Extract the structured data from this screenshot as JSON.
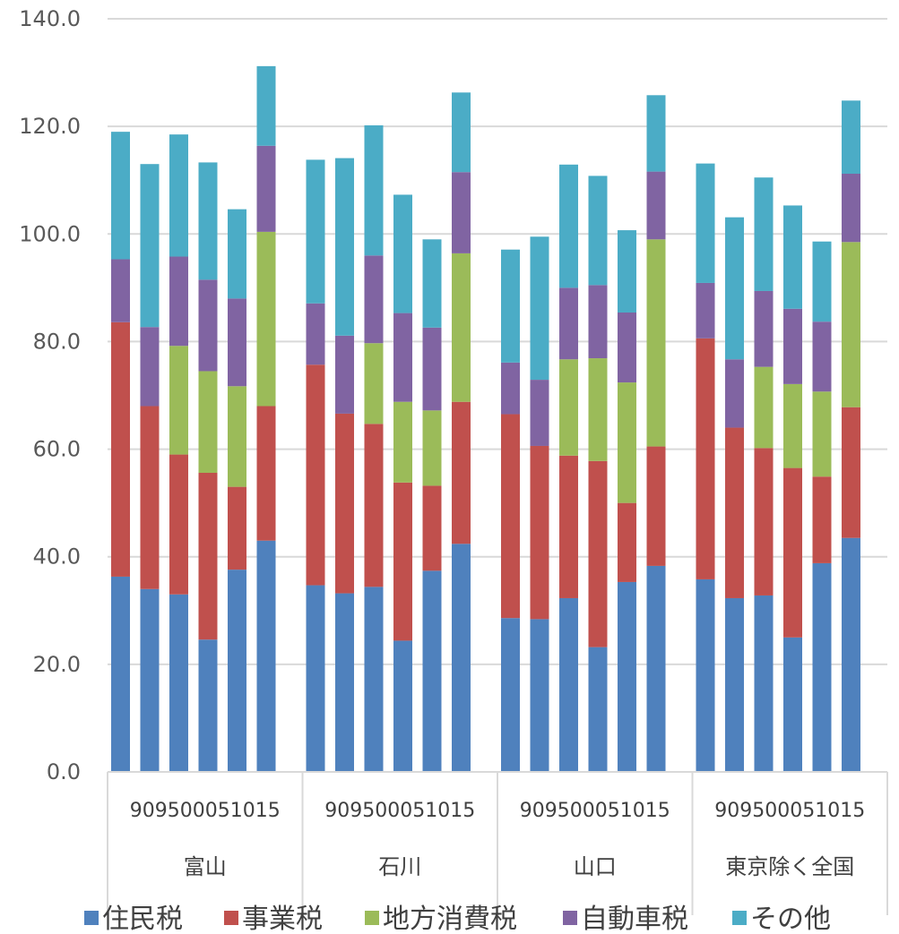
{
  "chart_data": {
    "type": "bar",
    "stacked": true,
    "title": "",
    "xlabel": "",
    "ylabel": "",
    "ylim": [
      0,
      140
    ],
    "y_ticks": [
      "0.0",
      "20.0",
      "40.0",
      "60.0",
      "80.0",
      "100.0",
      "120.0",
      "140.0"
    ],
    "grid": true,
    "legend_position": "bottom",
    "groups": [
      {
        "name": "富山",
        "tick_label": "909500051015"
      },
      {
        "name": "石川",
        "tick_label": "909500051015"
      },
      {
        "name": "山口",
        "tick_label": "909500051015"
      },
      {
        "name": "東京除く全国",
        "tick_label": "909500051015"
      }
    ],
    "series": [
      {
        "name": "住民税",
        "color": "#4F81BD",
        "values": [
          [
            36.3,
            34.0,
            33.0,
            24.6,
            37.6,
            43.0
          ],
          [
            34.7,
            33.2,
            34.4,
            24.4,
            37.4,
            42.4
          ],
          [
            28.6,
            28.4,
            32.3,
            23.2,
            35.3,
            38.3
          ],
          [
            35.8,
            32.3,
            32.8,
            25.0,
            38.8,
            43.5
          ]
        ]
      },
      {
        "name": "事業税",
        "color": "#C0504D",
        "values": [
          [
            47.3,
            34.0,
            26.0,
            31.0,
            15.4,
            25.0
          ],
          [
            41.0,
            33.4,
            30.3,
            29.4,
            15.8,
            26.4
          ],
          [
            37.9,
            32.2,
            26.5,
            34.6,
            14.7,
            22.2
          ],
          [
            44.8,
            31.7,
            27.4,
            31.5,
            16.1,
            24.3
          ]
        ]
      },
      {
        "name": "地方消費税",
        "color": "#9BBB59",
        "values": [
          [
            0,
            0,
            20.2,
            18.9,
            18.7,
            32.4
          ],
          [
            0,
            0,
            15.0,
            15.0,
            14.0,
            27.6
          ],
          [
            0,
            0,
            17.9,
            19.1,
            22.4,
            38.5
          ],
          [
            0,
            0,
            15.1,
            15.6,
            15.8,
            30.7
          ]
        ]
      },
      {
        "name": "自動車税",
        "color": "#8064A2",
        "values": [
          [
            11.7,
            14.7,
            16.6,
            17.0,
            16.3,
            16.0
          ],
          [
            11.4,
            14.5,
            16.3,
            16.5,
            15.4,
            15.1
          ],
          [
            9.6,
            12.3,
            13.3,
            13.6,
            13.0,
            12.6
          ],
          [
            10.3,
            12.7,
            14.1,
            14.0,
            13.0,
            12.7
          ]
        ]
      },
      {
        "name": "その他",
        "color": "#4BACC6",
        "values": [
          [
            23.7,
            30.3,
            22.7,
            21.8,
            16.6,
            14.8
          ],
          [
            26.7,
            33.0,
            24.2,
            22.0,
            16.4,
            14.8
          ],
          [
            21.0,
            26.6,
            22.9,
            20.3,
            15.3,
            14.2
          ],
          [
            22.2,
            26.4,
            21.1,
            19.2,
            14.9,
            13.6
          ]
        ]
      }
    ]
  }
}
